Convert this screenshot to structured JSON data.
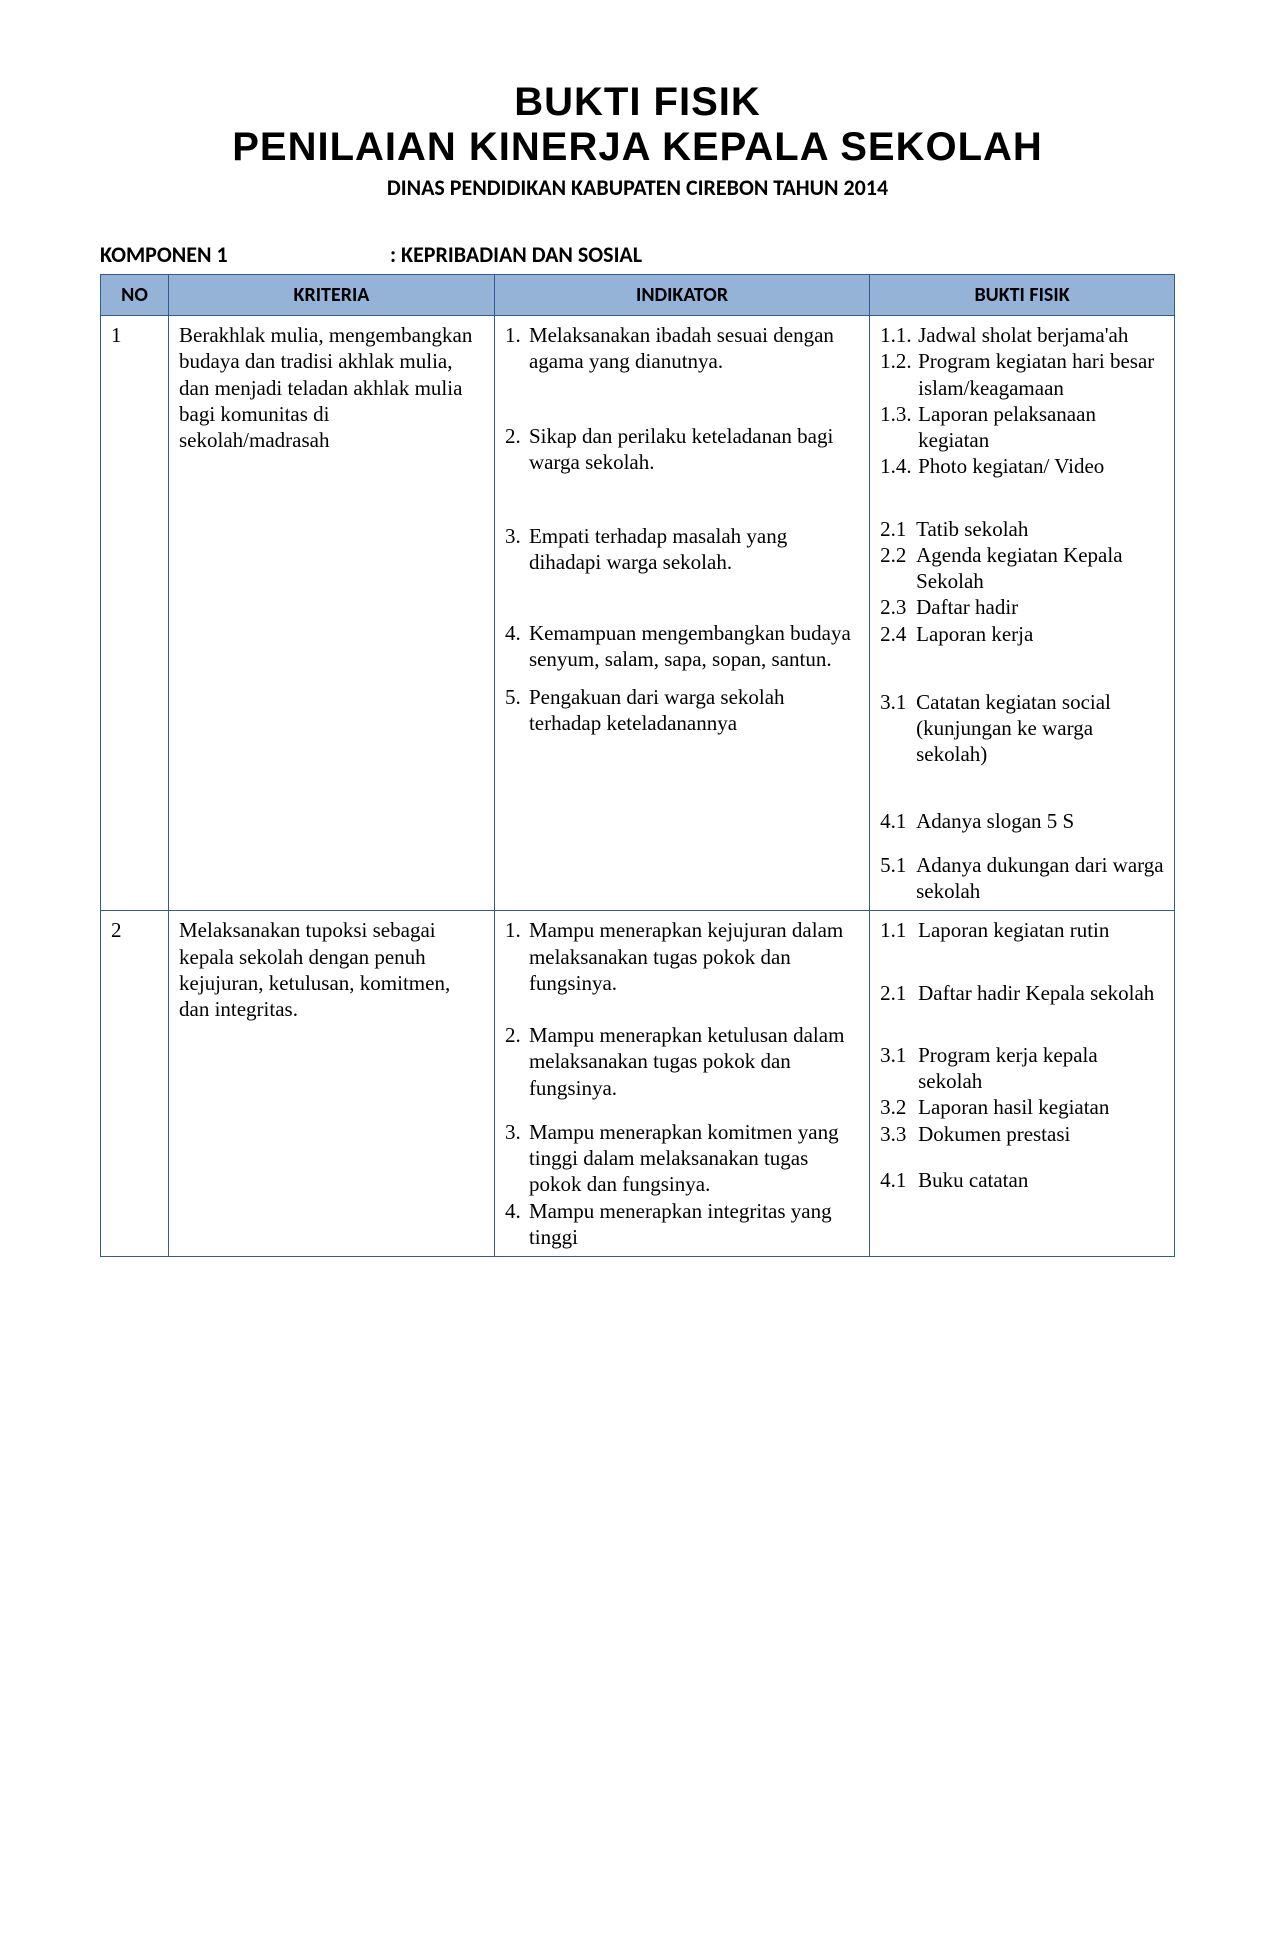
{
  "header": {
    "title1": "BUKTI FISIK",
    "title2": "PENILAIAN KINERJA KEPALA SEKOLAH",
    "subtitle": "DINAS PENDIDIKAN KABUPATEN CIREBON TAHUN 2014"
  },
  "komponen": {
    "label": "KOMPONEN 1",
    "value": ": KEPRIBADIAN DAN SOSIAL"
  },
  "table": {
    "headers": {
      "no": "NO",
      "kriteria": "KRITERIA",
      "indikator": "INDIKATOR",
      "bukti": "BUKTI FISIK"
    },
    "rows": [
      {
        "no": "1",
        "kriteria": "Berakhlak mulia, mengembangkan budaya dan tradisi akhlak mulia, dan menjadi teladan akhlak mulia bagi komunitas di sekolah/madrasah",
        "indikator": [
          {
            "n": "1.",
            "t": "Melaksanakan ibadah sesuai dengan agama yang dianutnya."
          },
          {
            "n": "2.",
            "t": "Sikap dan perilaku keteladanan bagi warga sekolah."
          },
          {
            "n": "3.",
            "t": "Empati terhadap masalah yang dihadapi warga sekolah."
          },
          {
            "n": "4.",
            "t": "Kemampuan mengembangkan budaya senyum, salam, sapa, sopan, santun."
          },
          {
            "n": "5.",
            "t": "Pengakuan dari warga sekolah terhadap keteladanannya"
          }
        ],
        "bukti": [
          [
            {
              "n": "1.1.",
              "t": "Jadwal sholat berjama'ah"
            },
            {
              "n": "1.2.",
              "t": "Program kegiatan hari besar islam/keagamaan"
            },
            {
              "n": "1.3.",
              "t": "Laporan pelaksanaan kegiatan"
            },
            {
              "n": "1.4.",
              "t": "Photo kegiatan/ Video"
            }
          ],
          [
            {
              "n": "2.1",
              "t": "Tatib sekolah"
            },
            {
              "n": "2.2",
              "t": "Agenda kegiatan Kepala Sekolah"
            },
            {
              "n": "2.3",
              "t": "Daftar hadir"
            },
            {
              "n": "2.4",
              "t": "Laporan kerja"
            }
          ],
          [
            {
              "n": "3.1",
              "t": "Catatan kegiatan social (kunjungan ke warga sekolah)"
            }
          ],
          [
            {
              "n": "4.1",
              "t": "Adanya slogan 5 S"
            }
          ],
          [
            {
              "n": "5.1",
              "t": "Adanya dukungan dari warga sekolah"
            }
          ]
        ]
      },
      {
        "no": "2",
        "kriteria": "Melaksanakan tupoksi sebagai kepala sekolah dengan penuh kejujuran, ketulusan, komitmen, dan integritas.",
        "indikator": [
          {
            "n": "1.",
            "t": "Mampu menerapkan kejujuran dalam melaksanakan tugas pokok dan fungsinya."
          },
          {
            "n": "2.",
            "t": "Mampu menerapkan ketulusan dalam melaksanakan tugas pokok dan fungsinya."
          },
          {
            "n": "3.",
            "t": "Mampu menerapkan komitmen yang tinggi dalam melaksanakan tugas pokok dan fungsinya."
          },
          {
            "n": "4.",
            "t": "Mampu menerapkan integritas yang tinggi"
          }
        ],
        "bukti": [
          [
            {
              "n": "1.1",
              "t": "Laporan kegiatan rutin"
            }
          ],
          [
            {
              "n": "2.1",
              "t": "Daftar hadir Kepala sekolah"
            }
          ],
          [
            {
              "n": "3.1",
              "t": "Program kerja kepala sekolah"
            },
            {
              "n": "3.2",
              "t": "Laporan hasil kegiatan"
            },
            {
              "n": "3.3",
              "t": "Dokumen prestasi"
            }
          ],
          [
            {
              "n": "4.1",
              "t": "Buku catatan"
            }
          ]
        ]
      }
    ]
  },
  "style": {
    "header_bg": "#95b3d7",
    "border_color": "#355a8e",
    "text_color": "#000000",
    "page_bg": "#ffffff"
  }
}
